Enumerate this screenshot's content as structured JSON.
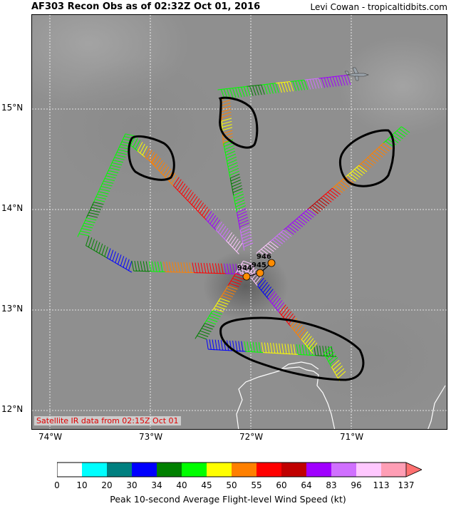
{
  "header": {
    "title": "AF303 Recon Obs as of 02:32Z Oct 01, 2016",
    "credit": "Levi Cowan - tropicaltidbits.com"
  },
  "axes": {
    "lat_labels": [
      "15°N",
      "14°N",
      "13°N",
      "12°N"
    ],
    "lon_labels": [
      "74°W",
      "73°W",
      "72°W",
      "71°W"
    ]
  },
  "satellite_note": "Satellite IR data from 02:15Z Oct 01",
  "pressure_obs": [
    "946",
    "945",
    "944"
  ],
  "colorbar": {
    "title": "Peak 10-second Average Flight-level Wind Speed (kt)",
    "labels": [
      "0",
      "10",
      "20",
      "30",
      "34",
      "40",
      "45",
      "50",
      "55",
      "60",
      "64",
      "83",
      "96",
      "113",
      "137"
    ],
    "colors": [
      "#ffffff",
      "#00ffff",
      "#008080",
      "#0000ff",
      "#008000",
      "#00ff00",
      "#ffff00",
      "#ff8000",
      "#ff0000",
      "#c00000",
      "#a000ff",
      "#d070ff",
      "#ffc8ff",
      "#ff9eb5"
    ],
    "extend_color": "#ff7070"
  },
  "icons": {
    "aircraft": "aircraft-icon",
    "barb": "wind-barb-icon"
  }
}
